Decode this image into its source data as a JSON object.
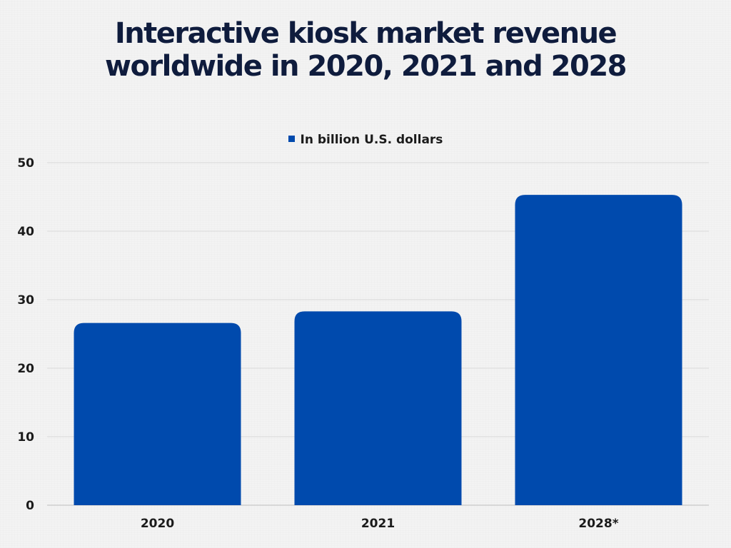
{
  "chart_data": {
    "type": "bar",
    "title_lines": [
      "Interactive kiosk market revenue",
      "worldwide in 2020, 2021 and 2028"
    ],
    "categories": [
      "2020",
      "2021",
      "2028*"
    ],
    "series": [
      {
        "name": "In billion U.S. dollars",
        "values": [
          26.6,
          28.3,
          45.3
        ]
      }
    ],
    "ylim": [
      0,
      50
    ],
    "yticks": [
      0,
      10,
      20,
      30,
      40,
      50
    ],
    "grid": true,
    "legend_position": "top-center",
    "bar_color": "#004aad",
    "title_color": "#0f1c3d"
  }
}
